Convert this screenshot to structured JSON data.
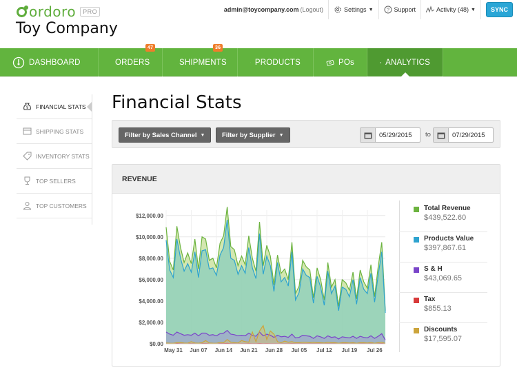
{
  "app": {
    "logo_text": "ordoro",
    "logo_badge": "PRO",
    "company_name": "Toy Company"
  },
  "topbar": {
    "user_email": "admin@toycompany.com",
    "logout_label": "(Logout)",
    "settings_label": "Settings",
    "support_label": "Support",
    "activity_label": "Activity (48)",
    "sync_label": "SYNC"
  },
  "nav": {
    "items": [
      {
        "label": "DASHBOARD",
        "icon": "dashboard-icon"
      },
      {
        "label": "ORDERS",
        "icon": "dollar-doc-icon",
        "badge": "47"
      },
      {
        "label": "SHIPMENTS",
        "icon": "box-icon",
        "badge": "36"
      },
      {
        "label": "PRODUCTS",
        "icon": "tag-icon"
      },
      {
        "label": "POs",
        "icon": "money-icon"
      },
      {
        "label": "ANALYTICS",
        "icon": "bar-chart-icon",
        "active": true
      }
    ]
  },
  "sidebar": {
    "items": [
      {
        "label": "FINANCIAL STATS",
        "icon": "money-bag-icon",
        "active": true
      },
      {
        "label": "SHIPPING STATS",
        "icon": "box-icon"
      },
      {
        "label": "INVENTORY STATS",
        "icon": "tag-icon"
      },
      {
        "label": "TOP SELLERS",
        "icon": "trophy-icon"
      },
      {
        "label": "TOP CUSTOMERS",
        "icon": "person-icon"
      }
    ]
  },
  "main": {
    "title": "Financial Stats",
    "filters": {
      "sales_channel_label": "Filter by Sales Channel",
      "supplier_label": "Filter by Supplier",
      "date_from": "05/29/2015",
      "date_to_sep": "to",
      "date_to": "07/29/2015"
    },
    "revenue_panel": {
      "title": "REVENUE",
      "legend": [
        {
          "name": "Total Revenue",
          "value": "$439,522.60",
          "color": "#6cb33f"
        },
        {
          "name": "Products Value",
          "value": "$397,867.61",
          "color": "#2ea3cf"
        },
        {
          "name": "S & H",
          "value": "$43,069.65",
          "color": "#7a45c9"
        },
        {
          "name": "Tax",
          "value": "$855.13",
          "color": "#d83a3a"
        },
        {
          "name": "Discounts",
          "value": "$17,595.07",
          "color": "#cca43b"
        }
      ]
    }
  },
  "chart_data": {
    "type": "area",
    "title": "",
    "xlabel": "",
    "ylabel": "",
    "ylim": [
      0,
      12500
    ],
    "y_ticks": [
      "$0.00",
      "$2,000.00",
      "$4,000.00",
      "$6,000.00",
      "$8,000.00",
      "$10,000.00",
      "$12,000.00"
    ],
    "y_tick_values": [
      0,
      2000,
      4000,
      6000,
      8000,
      10000,
      12000
    ],
    "x_tick_labels": [
      "May 31",
      "Jun 07",
      "Jun 14",
      "Jun 21",
      "Jun 28",
      "Jul 05",
      "Jul 12",
      "Jul 19",
      "Jul 26"
    ],
    "x_tick_day_index": [
      2,
      9,
      16,
      23,
      30,
      37,
      44,
      51,
      58
    ],
    "day_count": 62,
    "series": [
      {
        "name": "Total Revenue",
        "color": "#6cb33f",
        "values": [
          10900,
          7700,
          6900,
          11000,
          9000,
          7600,
          8500,
          7500,
          9800,
          7000,
          10000,
          9800,
          7800,
          8000,
          7100,
          9400,
          10100,
          12800,
          9100,
          8800,
          7300,
          8200,
          7400,
          10100,
          8000,
          6800,
          11400,
          7300,
          9200,
          8200,
          5500,
          8300,
          6600,
          7000,
          6000,
          9500,
          4700,
          5400,
          7800,
          7200,
          6900,
          4300,
          7100,
          6000,
          4100,
          7600,
          5300,
          6000,
          3500,
          6000,
          5700,
          5000,
          6700,
          4200,
          6900,
          5800,
          5200,
          7400,
          4400,
          7200,
          9500,
          3100
        ]
      },
      {
        "name": "Products Value",
        "color": "#2ea3cf",
        "values": [
          9700,
          6900,
          6200,
          9800,
          8000,
          6800,
          7500,
          6700,
          8600,
          6200,
          8700,
          8800,
          7000,
          7100,
          6400,
          8300,
          9000,
          11600,
          8000,
          7800,
          6500,
          7300,
          6600,
          9000,
          7100,
          6100,
          10300,
          6500,
          8200,
          7300,
          4900,
          7600,
          5800,
          6200,
          5400,
          8600,
          4100,
          4800,
          7000,
          6400,
          6200,
          3800,
          6300,
          5300,
          3600,
          6800,
          4700,
          5400,
          3100,
          5300,
          5100,
          4400,
          6000,
          3700,
          6200,
          5100,
          4700,
          6600,
          3900,
          6400,
          8600,
          2900
        ]
      },
      {
        "name": "S & H",
        "color": "#7a45c9",
        "values": [
          1100,
          900,
          800,
          1100,
          950,
          800,
          850,
          800,
          1000,
          750,
          1000,
          1000,
          800,
          850,
          750,
          950,
          1000,
          1250,
          900,
          850,
          750,
          800,
          750,
          1000,
          800,
          700,
          1100,
          750,
          900,
          800,
          600,
          800,
          650,
          700,
          600,
          900,
          550,
          600,
          800,
          750,
          700,
          500,
          750,
          650,
          500,
          750,
          600,
          650,
          450,
          650,
          600,
          550,
          700,
          500,
          700,
          600,
          550,
          750,
          500,
          700,
          950,
          350
        ]
      },
      {
        "name": "Tax",
        "color": "#d83a3a",
        "values": [
          20,
          10,
          15,
          25,
          15,
          10,
          20,
          10,
          15,
          10,
          20,
          20,
          10,
          15,
          10,
          20,
          20,
          30,
          15,
          15,
          10,
          15,
          10,
          20,
          15,
          10,
          25,
          10,
          20,
          15,
          10,
          15,
          10,
          15,
          10,
          20,
          10,
          10,
          15,
          15,
          10,
          10,
          15,
          10,
          10,
          15,
          10,
          15,
          5,
          10,
          10,
          10,
          15,
          5,
          15,
          10,
          10,
          15,
          5,
          15,
          20,
          5
        ]
      },
      {
        "name": "Discounts",
        "color": "#cca43b",
        "values": [
          80,
          60,
          50,
          100,
          120,
          80,
          60,
          200,
          80,
          60,
          100,
          300,
          80,
          60,
          50,
          120,
          100,
          400,
          150,
          100,
          80,
          300,
          200,
          150,
          1100,
          200,
          1200,
          1700,
          400,
          1200,
          900,
          200,
          100,
          250,
          150,
          200,
          100,
          100,
          150,
          150,
          100,
          150,
          100,
          100,
          80,
          150,
          100,
          100,
          50,
          100,
          100,
          80,
          100,
          50,
          100,
          100,
          80,
          120,
          50,
          100,
          150,
          40
        ]
      }
    ]
  }
}
